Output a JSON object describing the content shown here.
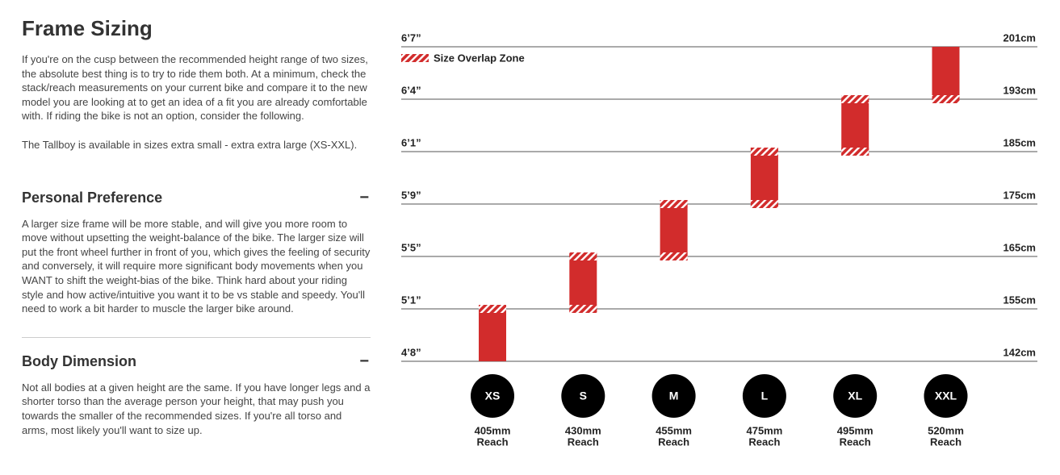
{
  "left": {
    "title": "Frame Sizing",
    "intro": [
      "If you're on the cusp between the recommended height range of two sizes, the absolute best thing is to try to ride them both. At a minimum, check the stack/reach measurements on your current bike and compare it to the new model you are looking at to get an idea of a fit you are already comfortable with. If riding the bike is not an option, consider the following.",
      "The Tallboy is available in sizes extra small - extra extra large (XS-XXL)."
    ],
    "sections": [
      {
        "heading": "Personal Preference",
        "toggle": "−",
        "body": "A larger size frame will be more stable, and will give you more room to move without upsetting the weight-balance of the bike. The larger size will put the front wheel further in front of you, which gives the feeling of security and conversely, it will require more significant body movements when you WANT to shift the weight-bias of the bike. Think hard about your riding style and how active/intuitive you want it to be vs stable and speedy. You'll need to work a bit harder to muscle the larger bike around."
      },
      {
        "heading": "Body Dimension",
        "toggle": "−",
        "body": "Not all bodies at a given height are the same. If you have longer legs and a shorter torso than the average person your height, that may push you towards the smaller of the recommended sizes. If you're all torso and arms, most likely you'll want to size up."
      }
    ]
  },
  "chart_data": {
    "type": "range-bar",
    "legend": "Size Overlap Zone",
    "color": "#d22c2c",
    "yticks": [
      {
        "value": 201,
        "label": "201cm"
      },
      {
        "value": 193,
        "label": "193cm"
      },
      {
        "value": 185,
        "label": "185cm"
      },
      {
        "value": 175,
        "label": "175cm"
      },
      {
        "value": 165,
        "label": "165cm"
      },
      {
        "value": 155,
        "label": "155cm"
      },
      {
        "value": 142,
        "label": "142cm"
      }
    ],
    "imperial_labels": [
      "6’7”",
      "6’4”",
      "6’1”",
      "5’9”",
      "5’5”",
      "5’1”",
      "4’8”"
    ],
    "categories": [
      "XS",
      "S",
      "M",
      "L",
      "XL",
      "XXL"
    ],
    "low": [
      142,
      155,
      165,
      175,
      185,
      193
    ],
    "high": [
      155,
      165,
      175,
      185,
      193,
      201
    ],
    "reach": [
      "405mm",
      "430mm",
      "455mm",
      "475mm",
      "495mm",
      "520mm"
    ],
    "reach_caption": "Reach"
  }
}
